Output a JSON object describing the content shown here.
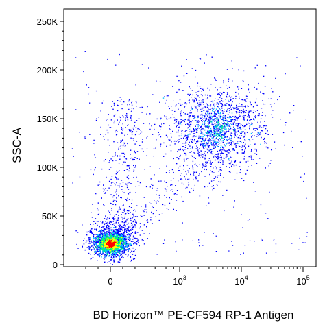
{
  "chart_data": {
    "type": "scatter",
    "title": "",
    "xlabel": "BD Horizon™ PE-CF594 RP-1 Antigen",
    "ylabel": "SSC-A",
    "x_scale": "biexponential",
    "y_scale": "linear",
    "ylim": [
      0,
      262144
    ],
    "y_ticks": [
      {
        "value": 0,
        "label": "0"
      },
      {
        "value": 50000,
        "label": "50K"
      },
      {
        "value": 100000,
        "label": "100K"
      },
      {
        "value": 150000,
        "label": "150K"
      },
      {
        "value": 200000,
        "label": "200K"
      },
      {
        "value": 250000,
        "label": "250K"
      }
    ],
    "x_ticks": [
      {
        "value": 0,
        "base": "0",
        "exp": ""
      },
      {
        "value": 1000,
        "base": "10",
        "exp": "3"
      },
      {
        "value": 10000,
        "base": "10",
        "exp": "4"
      },
      {
        "value": 100000,
        "base": "10",
        "exp": "5"
      }
    ],
    "grid": false,
    "legend": "none",
    "colors": {
      "sparse": "#0000ff",
      "low": "#00bfff",
      "mid": "#00ff66",
      "high": "#ffff00",
      "peak": "#ff0000"
    },
    "populations": [
      {
        "center_x": 0,
        "center_y": 22000,
        "spread_x": "narrow",
        "spread_y": 8000,
        "density": "very high"
      },
      {
        "center_x": 4000,
        "center_y": 140000,
        "spread_x": "wide",
        "spread_y": 30000,
        "density": "medium"
      },
      {
        "center_x": 0,
        "center_y": 90000,
        "spread_x": "narrow",
        "spread_y": 45000,
        "density": "low"
      }
    ]
  }
}
